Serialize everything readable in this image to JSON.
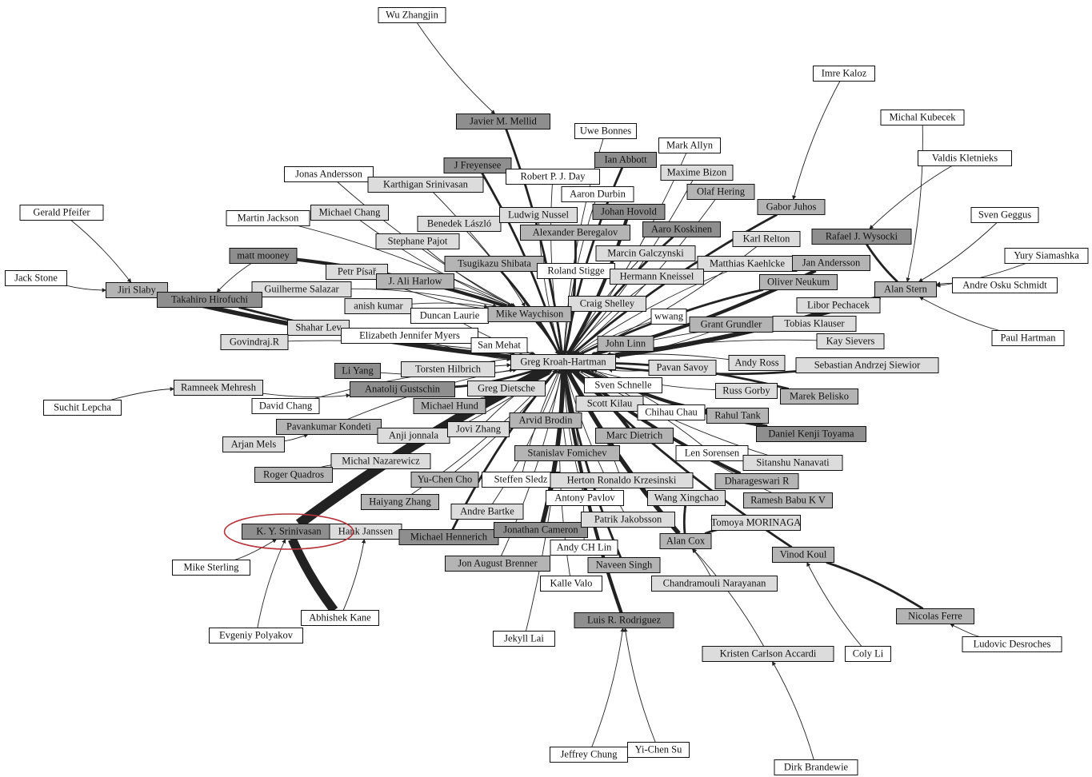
{
  "colors": {
    "white": "#ffffff",
    "light": "#dcdcdc",
    "mid": "#b4b4b4",
    "dark": "#8e8e8e",
    "edge": "#222222",
    "highlight": "#b5343c"
  },
  "nodes": [
    {
      "id": "wu",
      "label": "Wu Zhangjin",
      "shade": "white"
    },
    {
      "id": "mellid",
      "label": "Javier M. Mellid",
      "shade": "dark"
    },
    {
      "id": "bonnes",
      "label": "Uwe Bonnes",
      "shade": "white"
    },
    {
      "id": "allyn",
      "label": "Mark Allyn",
      "shade": "white"
    },
    {
      "id": "abbott",
      "label": "Ian Abbott",
      "shade": "dark"
    },
    {
      "id": "freyensee",
      "label": "J Freyensee",
      "shade": "dark"
    },
    {
      "id": "day",
      "label": "Robert P. J. Day",
      "shade": "white"
    },
    {
      "id": "bizon",
      "label": "Maxime Bizon",
      "shade": "light"
    },
    {
      "id": "jandersson",
      "label": "Jonas Andersson",
      "shade": "white"
    },
    {
      "id": "karthigan",
      "label": "Karthigan Srinivasan",
      "shade": "light"
    },
    {
      "id": "durbin",
      "label": "Aaron Durbin",
      "shade": "white"
    },
    {
      "id": "hering",
      "label": "Olaf Hering",
      "shade": "mid"
    },
    {
      "id": "kaloz",
      "label": "Imre Kaloz",
      "shade": "white"
    },
    {
      "id": "kubecek",
      "label": "Michal Kubecek",
      "shade": "white"
    },
    {
      "id": "kletnieks",
      "label": "Valdis Kletnieks",
      "shade": "white"
    },
    {
      "id": "pfeifer",
      "label": "Gerald Pfeifer",
      "shade": "white"
    },
    {
      "id": "mjackson",
      "label": "Martin Jackson",
      "shade": "white"
    },
    {
      "id": "mchang",
      "label": "Michael Chang",
      "shade": "light"
    },
    {
      "id": "benedek",
      "label": "Benedek László",
      "shade": "light"
    },
    {
      "id": "nussel",
      "label": "Ludwig Nussel",
      "shade": "light"
    },
    {
      "id": "hovold",
      "label": "Johan Hovold",
      "shade": "dark"
    },
    {
      "id": "juhos",
      "label": "Gabor Juhos",
      "shade": "mid"
    },
    {
      "id": "geggus",
      "label": "Sven Geggus",
      "shade": "white"
    },
    {
      "id": "pajot",
      "label": "Stephane Pajot",
      "shade": "light"
    },
    {
      "id": "beregalov",
      "label": "Alexander Beregalov",
      "shade": "mid"
    },
    {
      "id": "koskinen",
      "label": "Aaro Koskinen",
      "shade": "dark"
    },
    {
      "id": "relton",
      "label": "Karl Relton",
      "shade": "light"
    },
    {
      "id": "wysocki",
      "label": "Rafael J. Wysocki",
      "shade": "dark"
    },
    {
      "id": "siamashka",
      "label": "Yury Siamashka",
      "shade": "white"
    },
    {
      "id": "mooney",
      "label": "matt mooney",
      "shade": "dark"
    },
    {
      "id": "galczynski",
      "label": "Marcin Galczynski",
      "shade": "light"
    },
    {
      "id": "shibata",
      "label": "Tsugikazu Shibata",
      "shade": "mid"
    },
    {
      "id": "kaehlcke",
      "label": "Matthias Kaehlcke",
      "shade": "light"
    },
    {
      "id": "janandersson",
      "label": "Jan Andersson",
      "shade": "mid"
    },
    {
      "id": "stone",
      "label": "Jack Stone",
      "shade": "white"
    },
    {
      "id": "pisar",
      "label": "Petr Písař",
      "shade": "light"
    },
    {
      "id": "stigge",
      "label": "Roland Stigge",
      "shade": "white"
    },
    {
      "id": "kneissel",
      "label": "Hermann Kneissel",
      "shade": "light"
    },
    {
      "id": "harlow",
      "label": "J. Ali Harlow",
      "shade": "mid"
    },
    {
      "id": "neukum",
      "label": "Oliver Neukum",
      "shade": "mid"
    },
    {
      "id": "stern",
      "label": "Alan Stern",
      "shade": "mid"
    },
    {
      "id": "oskar",
      "label": "Andre Osku Schmidt",
      "shade": "white"
    },
    {
      "id": "slaby",
      "label": "Jiri Slaby",
      "shade": "mid"
    },
    {
      "id": "salazar",
      "label": "Guilherme Salazar",
      "shade": "light"
    },
    {
      "id": "hirofuchi",
      "label": "Takahiro Hirofuchi",
      "shade": "dark"
    },
    {
      "id": "kumar",
      "label": "anish kumar",
      "shade": "light"
    },
    {
      "id": "shelley",
      "label": "Craig Shelley",
      "shade": "light"
    },
    {
      "id": "pechacek",
      "label": "Libor Pechacek",
      "shade": "light"
    },
    {
      "id": "laurie",
      "label": "Duncan Laurie",
      "shade": "white"
    },
    {
      "id": "waychison",
      "label": "Mike Waychison",
      "shade": "mid"
    },
    {
      "id": "wwang",
      "label": "wwang",
      "shade": "white"
    },
    {
      "id": "grundler",
      "label": "Grant Grundler",
      "shade": "mid"
    },
    {
      "id": "klauser",
      "label": "Tobias Klauser",
      "shade": "light"
    },
    {
      "id": "hartman",
      "label": "Paul Hartman",
      "shade": "white"
    },
    {
      "id": "lev",
      "label": "Shahar Lev",
      "shade": "light"
    },
    {
      "id": "myers",
      "label": "Elizabeth Jennifer Myers",
      "shade": "white"
    },
    {
      "id": "govindraj",
      "label": "Govindraj.R",
      "shade": "light"
    },
    {
      "id": "mehat",
      "label": "San Mehat",
      "shade": "white"
    },
    {
      "id": "linn",
      "label": "John Linn",
      "shade": "mid"
    },
    {
      "id": "sievers",
      "label": "Kay Sievers",
      "shade": "light"
    },
    {
      "id": "gkh",
      "label": "Greg Kroah-Hartman",
      "shade": "light"
    },
    {
      "id": "savoy",
      "label": "Pavan Savoy",
      "shade": "light"
    },
    {
      "id": "ross",
      "label": "Andy Ross",
      "shade": "light"
    },
    {
      "id": "siewior",
      "label": "Sebastian Andrzej Siewior",
      "shade": "light"
    },
    {
      "id": "liyang",
      "label": "Li Yang",
      "shade": "dark"
    },
    {
      "id": "hilbrich",
      "label": "Torsten Hilbrich",
      "shade": "light"
    },
    {
      "id": "mehresh",
      "label": "Ramneek Mehresh",
      "shade": "light"
    },
    {
      "id": "gustschin",
      "label": "Anatolij Gustschin",
      "shade": "dark"
    },
    {
      "id": "dietsche",
      "label": "Greg Dietsche",
      "shade": "light"
    },
    {
      "id": "schnelle",
      "label": "Sven Schnelle",
      "shade": "white"
    },
    {
      "id": "gorby",
      "label": "Russ Gorby",
      "shade": "light"
    },
    {
      "id": "belisko",
      "label": "Marek Belisko",
      "shade": "mid"
    },
    {
      "id": "lepcha",
      "label": "Suchit Lepcha",
      "shade": "white"
    },
    {
      "id": "dchang",
      "label": "David Chang",
      "shade": "white"
    },
    {
      "id": "hund",
      "label": "Michael Hund",
      "shade": "mid"
    },
    {
      "id": "kilau",
      "label": "Scott Kilau",
      "shade": "light"
    },
    {
      "id": "chihau",
      "label": "Chihau Chau",
      "shade": "white"
    },
    {
      "id": "tank",
      "label": "Rahul Tank",
      "shade": "mid"
    },
    {
      "id": "brodin",
      "label": "Arvid Brodin",
      "shade": "mid"
    },
    {
      "id": "kondeti",
      "label": "Pavankumar Kondeti",
      "shade": "mid"
    },
    {
      "id": "jonnala",
      "label": "Anji jonnala",
      "shade": "light"
    },
    {
      "id": "jzhang",
      "label": "Jovi Zhang",
      "shade": "light"
    },
    {
      "id": "dietrich",
      "label": "Marc Dietrich",
      "shade": "mid"
    },
    {
      "id": "toyama",
      "label": "Daniel Kenji Toyama",
      "shade": "dark"
    },
    {
      "id": "mels",
      "label": "Arjan Mels",
      "shade": "light"
    },
    {
      "id": "fomichev",
      "label": "Stanislav Fomichev",
      "shade": "mid"
    },
    {
      "id": "sorensen",
      "label": "Len Sorensen",
      "shade": "white"
    },
    {
      "id": "nanavati",
      "label": "Sitanshu Nanavati",
      "shade": "light"
    },
    {
      "id": "nazarewicz",
      "label": "Michal Nazarewicz",
      "shade": "light"
    },
    {
      "id": "quadros",
      "label": "Roger Quadros",
      "shade": "mid"
    },
    {
      "id": "ycho",
      "label": "Yu-Chen Cho",
      "shade": "mid"
    },
    {
      "id": "sledz",
      "label": "Steffen Sledz",
      "shade": "white"
    },
    {
      "id": "krzesinski",
      "label": "Herton Ronaldo Krzesinski",
      "shade": "light"
    },
    {
      "id": "dharageswari",
      "label": "Dharageswari R",
      "shade": "mid"
    },
    {
      "id": "hzhang",
      "label": "Haiyang Zhang",
      "shade": "mid"
    },
    {
      "id": "pavlov",
      "label": "Antony Pavlov",
      "shade": "white"
    },
    {
      "id": "wang",
      "label": "Wang Xingchao",
      "shade": "light"
    },
    {
      "id": "babu",
      "label": "Ramesh Babu K V",
      "shade": "mid"
    },
    {
      "id": "bartke",
      "label": "Andre Bartke",
      "shade": "light"
    },
    {
      "id": "srinivasan",
      "label": "K. Y. Srinivasan",
      "shade": "dark"
    },
    {
      "id": "janssen",
      "label": "Hank Janssen",
      "shade": "light"
    },
    {
      "id": "hennerich",
      "label": "Michael Hennerich",
      "shade": "dark"
    },
    {
      "id": "cameron",
      "label": "Jonathan Cameron",
      "shade": "dark"
    },
    {
      "id": "bosson",
      "label": "Patrik Jakobsson",
      "shade": "light"
    },
    {
      "id": "morinaga",
      "label": "Tomoya MORINAGA",
      "shade": "light"
    },
    {
      "id": "cox",
      "label": "Alan Cox",
      "shade": "mid"
    },
    {
      "id": "andylin",
      "label": "Andy CH Lin",
      "shade": "white"
    },
    {
      "id": "koul",
      "label": "Vinod Koul",
      "shade": "mid"
    },
    {
      "id": "brenner",
      "label": "Jon August Brenner",
      "shade": "mid"
    },
    {
      "id": "singh",
      "label": "Naveen Singh",
      "shade": "mid"
    },
    {
      "id": "sterling",
      "label": "Mike Sterling",
      "shade": "white"
    },
    {
      "id": "valo",
      "label": "Kalle Valo",
      "shade": "white"
    },
    {
      "id": "narayanan",
      "label": "Chandramouli Narayanan",
      "shade": "light"
    },
    {
      "id": "kane",
      "label": "Abhishek Kane",
      "shade": "white"
    },
    {
      "id": "rodriguez",
      "label": "Luis R. Rodriguez",
      "shade": "dark"
    },
    {
      "id": "ferre",
      "label": "Nicolas Ferre",
      "shade": "mid"
    },
    {
      "id": "polyakov",
      "label": "Evgeniy Polyakov",
      "shade": "white"
    },
    {
      "id": "lai",
      "label": "Jekyll Lai",
      "shade": "white"
    },
    {
      "id": "desroches",
      "label": "Ludovic Desroches",
      "shade": "white"
    },
    {
      "id": "accardi",
      "label": "Kristen Carlson Accardi",
      "shade": "light"
    },
    {
      "id": "colyli",
      "label": "Coly Li",
      "shade": "white"
    },
    {
      "id": "chung",
      "label": "Jeffrey Chung",
      "shade": "white"
    },
    {
      "id": "yisu",
      "label": "Yi-Chen Su",
      "shade": "white"
    },
    {
      "id": "brandewie",
      "label": "Dirk Brandewie",
      "shade": "white"
    }
  ],
  "edges": [
    [
      "wu",
      "mellid",
      1
    ],
    [
      "mellid",
      "gkh",
      2
    ],
    [
      "bonnes",
      "gkh",
      1
    ],
    [
      "allyn",
      "gkh",
      1
    ],
    [
      "abbott",
      "gkh",
      2
    ],
    [
      "freyensee",
      "gkh",
      2
    ],
    [
      "day",
      "gkh",
      1
    ],
    [
      "bizon",
      "gkh",
      1
    ],
    [
      "jandersson",
      "waychison",
      1
    ],
    [
      "karthigan",
      "gkh",
      1
    ],
    [
      "durbin",
      "gkh",
      1
    ],
    [
      "hering",
      "gkh",
      1
    ],
    [
      "kaloz",
      "juhos",
      1
    ],
    [
      "kubecek",
      "stern",
      1
    ],
    [
      "kletnieks",
      "wysocki",
      1
    ],
    [
      "pfeifer",
      "slaby",
      1
    ],
    [
      "stone",
      "slaby",
      1
    ],
    [
      "mjackson",
      "waychison",
      1
    ],
    [
      "mchang",
      "waychison",
      1
    ],
    [
      "benedek",
      "waychison",
      1
    ],
    [
      "nussel",
      "gkh",
      1
    ],
    [
      "hovold",
      "gkh",
      3
    ],
    [
      "juhos",
      "gkh",
      2
    ],
    [
      "geggus",
      "stern",
      1
    ],
    [
      "pajot",
      "waychison",
      1
    ],
    [
      "beregalov",
      "gkh",
      2
    ],
    [
      "koskinen",
      "gkh",
      2
    ],
    [
      "relton",
      "gkh",
      1
    ],
    [
      "wysocki",
      "stern",
      2
    ],
    [
      "siamashka",
      "stern",
      1
    ],
    [
      "mooney",
      "hirofuchi",
      1
    ],
    [
      "mooney",
      "waychison",
      3
    ],
    [
      "galczynski",
      "gkh",
      1
    ],
    [
      "shibata",
      "gkh",
      2
    ],
    [
      "kaehlcke",
      "gkh",
      1
    ],
    [
      "janandersson",
      "gkh",
      3
    ],
    [
      "pisar",
      "waychison",
      1
    ],
    [
      "stigge",
      "gkh",
      1
    ],
    [
      "kneissel",
      "gkh",
      1
    ],
    [
      "harlow",
      "waychison",
      1
    ],
    [
      "neukum",
      "gkh",
      2
    ],
    [
      "stern",
      "gkh",
      4
    ],
    [
      "oskar",
      "stern",
      1
    ],
    [
      "hartman",
      "stern",
      1
    ],
    [
      "slaby",
      "gkh",
      4
    ],
    [
      "salazar",
      "waychison",
      1
    ],
    [
      "hirofuchi",
      "gkh",
      2
    ],
    [
      "kumar",
      "waychison",
      1
    ],
    [
      "shelley",
      "gkh",
      1
    ],
    [
      "pechacek",
      "gkh",
      1
    ],
    [
      "laurie",
      "gkh",
      1
    ],
    [
      "waychison",
      "gkh",
      2
    ],
    [
      "wwang",
      "gkh",
      1
    ],
    [
      "grundler",
      "gkh",
      1
    ],
    [
      "klauser",
      "gkh",
      1
    ],
    [
      "lev",
      "gkh",
      1
    ],
    [
      "myers",
      "gkh",
      1
    ],
    [
      "govindraj",
      "gkh",
      1
    ],
    [
      "mehat",
      "gkh",
      1
    ],
    [
      "linn",
      "gkh",
      1
    ],
    [
      "sievers",
      "gkh",
      1
    ],
    [
      "savoy",
      "gkh",
      1
    ],
    [
      "ross",
      "gkh",
      1
    ],
    [
      "siewior",
      "gkh",
      2
    ],
    [
      "liyang",
      "gkh",
      1
    ],
    [
      "hilbrich",
      "gkh",
      1
    ],
    [
      "mehresh",
      "gustschin",
      1
    ],
    [
      "lepcha",
      "mehresh",
      1
    ],
    [
      "gustschin",
      "gkh",
      2
    ],
    [
      "dietsche",
      "gkh",
      1
    ],
    [
      "schnelle",
      "gkh",
      1
    ],
    [
      "gorby",
      "gkh",
      1
    ],
    [
      "belisko",
      "gkh",
      2
    ],
    [
      "dchang",
      "gkh",
      1
    ],
    [
      "hund",
      "gkh",
      1
    ],
    [
      "kilau",
      "gkh",
      1
    ],
    [
      "chihau",
      "gkh",
      1
    ],
    [
      "tank",
      "gkh",
      2
    ],
    [
      "brodin",
      "gkh",
      1
    ],
    [
      "kondeti",
      "gkh",
      1
    ],
    [
      "jonnala",
      "gkh",
      1
    ],
    [
      "jzhang",
      "gkh",
      1
    ],
    [
      "dietrich",
      "gkh",
      3
    ],
    [
      "toyama",
      "gkh",
      3
    ],
    [
      "mels",
      "kondeti",
      1
    ],
    [
      "fomichev",
      "gkh",
      1
    ],
    [
      "sorensen",
      "gkh",
      1
    ],
    [
      "nanavati",
      "gkh",
      1
    ],
    [
      "nazarewicz",
      "gkh",
      1
    ],
    [
      "quadros",
      "nazarewicz",
      1
    ],
    [
      "ycho",
      "gkh",
      1
    ],
    [
      "sledz",
      "gkh",
      1
    ],
    [
      "krzesinski",
      "gkh",
      1
    ],
    [
      "dharageswari",
      "gkh",
      3
    ],
    [
      "hzhang",
      "gkh",
      1
    ],
    [
      "pavlov",
      "gkh",
      1
    ],
    [
      "wang",
      "cox",
      2
    ],
    [
      "babu",
      "gkh",
      1
    ],
    [
      "bartke",
      "gkh",
      1
    ],
    [
      "srinivasan",
      "gkh",
      9
    ],
    [
      "janssen",
      "srinivasan",
      2
    ],
    [
      "hennerich",
      "gkh",
      2
    ],
    [
      "cameron",
      "gkh",
      4
    ],
    [
      "bosson",
      "gkh",
      1
    ],
    [
      "morinaga",
      "cox",
      2
    ],
    [
      "cox",
      "gkh",
      4
    ],
    [
      "andylin",
      "gkh",
      1
    ],
    [
      "koul",
      "gkh",
      2
    ],
    [
      "brenner",
      "gkh",
      1
    ],
    [
      "singh",
      "gkh",
      2
    ],
    [
      "sterling",
      "srinivasan",
      1
    ],
    [
      "valo",
      "gkh",
      1
    ],
    [
      "narayanan",
      "cox",
      1
    ],
    [
      "kane",
      "srinivasan",
      8
    ],
    [
      "kane",
      "janssen",
      1
    ],
    [
      "rodriguez",
      "gkh",
      3
    ],
    [
      "ferre",
      "koul",
      2
    ],
    [
      "polyakov",
      "srinivasan",
      1
    ],
    [
      "lai",
      "gkh",
      1
    ],
    [
      "desroches",
      "ferre",
      1
    ],
    [
      "accardi",
      "cox",
      1
    ],
    [
      "colyli",
      "koul",
      1
    ],
    [
      "chung",
      "rodriguez",
      1
    ],
    [
      "yisu",
      "rodriguez",
      1
    ],
    [
      "brandewie",
      "accardi",
      1
    ]
  ],
  "highlight_node": "srinivasan"
}
